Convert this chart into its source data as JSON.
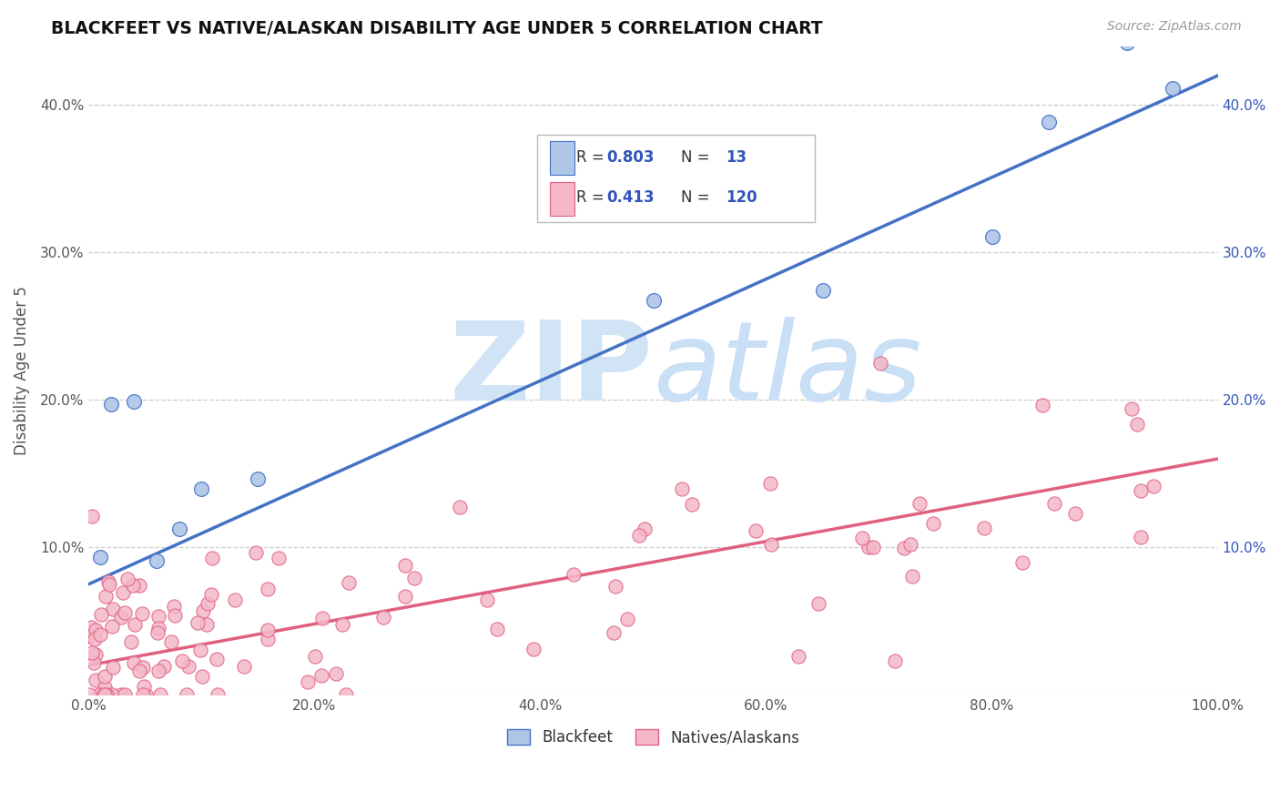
{
  "title": "BLACKFEET VS NATIVE/ALASKAN DISABILITY AGE UNDER 5 CORRELATION CHART",
  "source": "Source: ZipAtlas.com",
  "ylabel": "Disability Age Under 5",
  "R_blackfeet": 0.803,
  "N_blackfeet": 13,
  "R_natives": 0.413,
  "N_natives": 120,
  "blackfeet_color": "#aec6e8",
  "natives_color": "#f4b8c8",
  "blackfeet_line_color": "#4472c4",
  "natives_line_color": "#e06080",
  "watermark_color": "#d0e4f5",
  "background_color": "#ffffff",
  "grid_color": "#cccccc",
  "legend_text_color": "#3355bb",
  "xlim": [
    0,
    100
  ],
  "ylim": [
    0,
    44
  ],
  "x_ticks": [
    0,
    20,
    40,
    60,
    80,
    100
  ],
  "y_ticks": [
    0,
    10,
    20,
    30,
    40
  ],
  "bf_intercept": 7.5,
  "bf_slope": 0.345,
  "nat_intercept": 2.0,
  "nat_slope": 0.14
}
